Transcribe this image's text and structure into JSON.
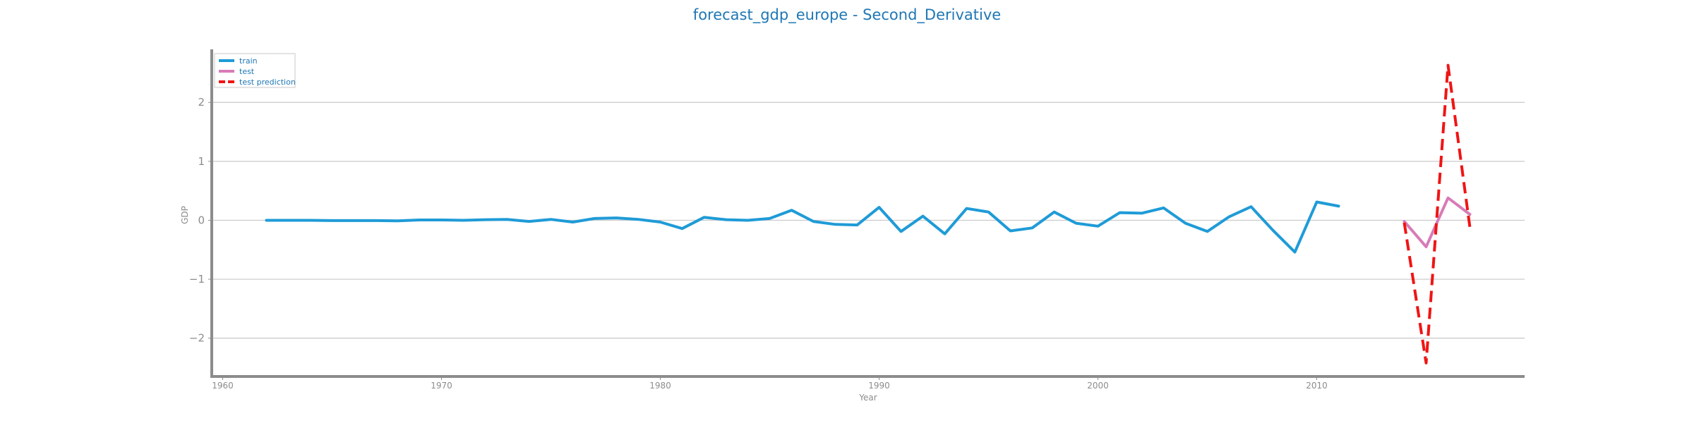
{
  "chart_data": {
    "type": "line",
    "title": "forecast_gdp_europe - Second_Derivative",
    "xlabel": "Year",
    "ylabel": "GDP",
    "xlim": [
      1959.5,
      2019.5
    ],
    "ylim": [
      -2.65,
      2.9
    ],
    "xticks": [
      1960,
      1970,
      1980,
      1990,
      2000,
      2010
    ],
    "yticks": [
      -2,
      -1,
      0,
      1,
      2
    ],
    "ytick_labels": [
      "−2",
      "−1",
      "0",
      "1",
      "2"
    ],
    "grid": "horizontal",
    "legend_position": "top-left",
    "series": [
      {
        "name": "train",
        "color": "#1f9bd7",
        "dash": "solid",
        "x": [
          1962,
          1963,
          1964,
          1965,
          1966,
          1967,
          1968,
          1969,
          1970,
          1971,
          1972,
          1973,
          1974,
          1975,
          1976,
          1977,
          1978,
          1979,
          1980,
          1981,
          1982,
          1983,
          1984,
          1985,
          1986,
          1987,
          1988,
          1989,
          1990,
          1991,
          1992,
          1993,
          1994,
          1995,
          1996,
          1997,
          1998,
          1999,
          2000,
          2001,
          2002,
          2003,
          2004,
          2005,
          2006,
          2007,
          2008,
          2009,
          2010,
          2011
        ],
        "y": [
          0.0,
          0.0,
          0.0,
          -0.005,
          -0.005,
          -0.005,
          -0.01,
          0.005,
          0.005,
          0.0,
          0.01,
          0.015,
          -0.02,
          0.015,
          -0.03,
          0.03,
          0.04,
          0.015,
          -0.03,
          -0.14,
          0.05,
          0.01,
          0.0,
          0.03,
          0.17,
          -0.02,
          -0.07,
          -0.08,
          0.22,
          -0.19,
          0.07,
          -0.23,
          0.2,
          0.14,
          -0.18,
          -0.13,
          0.14,
          -0.05,
          -0.1,
          0.13,
          0.12,
          0.21,
          -0.05,
          -0.19,
          0.06,
          0.23,
          -0.17,
          -0.54,
          0.31,
          0.24
        ]
      },
      {
        "name": "test",
        "color": "#d87bb8",
        "dash": "solid",
        "x": [
          2014,
          2015,
          2016,
          2017
        ],
        "y": [
          -0.02,
          -0.45,
          0.38,
          0.1
        ]
      },
      {
        "name": "test prediction",
        "color": "#f01414",
        "dash": "dashed",
        "x": [
          2014,
          2015,
          2016,
          2017
        ],
        "y": [
          -0.04,
          -2.42,
          2.63,
          -0.12
        ]
      }
    ]
  }
}
